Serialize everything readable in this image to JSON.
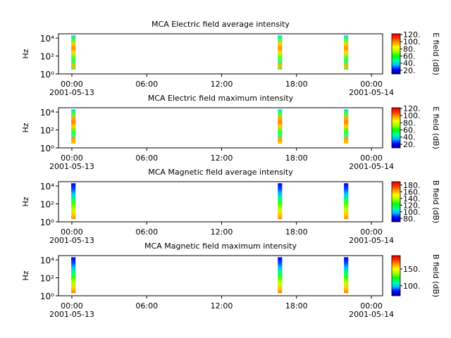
{
  "chart_data": [
    {
      "type": "spectrogram",
      "title": "MCA  Electric field average intensity",
      "ylabel": "Hz",
      "yscale": "log",
      "ylim": [
        1,
        30000
      ],
      "yticks": [
        {
          "value": 1,
          "label": "10⁰"
        },
        {
          "value": 100,
          "label": "10²"
        },
        {
          "value": 10000,
          "label": "10⁴"
        }
      ],
      "xlim": [
        -1.07,
        24.9
      ],
      "xticks": [
        {
          "value": 0,
          "label": "00:00"
        },
        {
          "value": 6,
          "label": "06:00"
        },
        {
          "value": 12,
          "label": "12:00"
        },
        {
          "value": 18,
          "label": "18:00"
        },
        {
          "value": 24,
          "label": "00:00"
        }
      ],
      "dates": [
        {
          "value": 0,
          "label": "2001-05-13"
        },
        {
          "value": 24,
          "label": "2001-05-14"
        }
      ],
      "bursts": [
        {
          "start": -0.05,
          "end": 0.3,
          "fmin": 3,
          "fmax": 20000
        },
        {
          "start": 16.5,
          "end": 16.85,
          "fmin": 3,
          "fmax": 20000
        },
        {
          "start": 21.8,
          "end": 22.15,
          "fmin": 3,
          "fmax": 20000
        }
      ],
      "burst_colors": [
        "#00e0ff",
        "#40ff40",
        "#ffd000",
        "#ff9000",
        "#ffe000",
        "#60ff20",
        "#20ff80",
        "#ffb000",
        "#50ff30"
      ],
      "colorbar_label": "E field (dB)",
      "clim": [
        10,
        122
      ],
      "cticks": [
        {
          "value": 20,
          "label": "20."
        },
        {
          "value": 40,
          "label": "40."
        },
        {
          "value": 60,
          "label": "60."
        },
        {
          "value": 80,
          "label": "80."
        },
        {
          "value": 100,
          "label": "100."
        },
        {
          "value": 120,
          "label": "120."
        }
      ],
      "colormap": [
        "#0000a0",
        "#0000ff",
        "#00c0ff",
        "#00ffa0",
        "#00ff00",
        "#a0ff00",
        "#ffff00",
        "#ffa000",
        "#ff3000",
        "#e00000"
      ]
    },
    {
      "type": "spectrogram",
      "title": "MCA  Electric field maximum intensity",
      "ylabel": "Hz",
      "yscale": "log",
      "ylim": [
        1,
        30000
      ],
      "yticks": [
        {
          "value": 1,
          "label": "10⁰"
        },
        {
          "value": 100,
          "label": "10²"
        },
        {
          "value": 10000,
          "label": "10⁴"
        }
      ],
      "xlim": [
        -1.07,
        24.9
      ],
      "xticks": [
        {
          "value": 0,
          "label": "00:00"
        },
        {
          "value": 6,
          "label": "06:00"
        },
        {
          "value": 12,
          "label": "12:00"
        },
        {
          "value": 18,
          "label": "18:00"
        },
        {
          "value": 24,
          "label": "00:00"
        }
      ],
      "dates": [
        {
          "value": 0,
          "label": "2001-05-13"
        },
        {
          "value": 24,
          "label": "2001-05-14"
        }
      ],
      "bursts": [
        {
          "start": -0.05,
          "end": 0.3,
          "fmin": 3,
          "fmax": 20000
        },
        {
          "start": 16.5,
          "end": 16.85,
          "fmin": 3,
          "fmax": 20000
        },
        {
          "start": 21.8,
          "end": 22.15,
          "fmin": 3,
          "fmax": 20000
        }
      ],
      "burst_colors": [
        "#00e0ff",
        "#40ff40",
        "#ffb000",
        "#ff8000",
        "#ffd000",
        "#40ff20",
        "#20ff80",
        "#ffa000",
        "#ffd000"
      ],
      "colorbar_label": "E field (dB)",
      "clim": [
        10,
        122
      ],
      "cticks": [
        {
          "value": 20,
          "label": "20."
        },
        {
          "value": 40,
          "label": "40."
        },
        {
          "value": 60,
          "label": "60."
        },
        {
          "value": 80,
          "label": "80."
        },
        {
          "value": 100,
          "label": "100."
        },
        {
          "value": 120,
          "label": "120."
        }
      ],
      "colormap": [
        "#0000a0",
        "#0000ff",
        "#00c0ff",
        "#00ffa0",
        "#00ff00",
        "#a0ff00",
        "#ffff00",
        "#ffa000",
        "#ff3000",
        "#e00000"
      ]
    },
    {
      "type": "spectrogram",
      "title": "MCA  Magnetic field average intensity",
      "ylabel": "Hz",
      "yscale": "log",
      "ylim": [
        1,
        30000
      ],
      "yticks": [
        {
          "value": 1,
          "label": "10⁰"
        },
        {
          "value": 100,
          "label": "10²"
        },
        {
          "value": 10000,
          "label": "10⁴"
        }
      ],
      "xlim": [
        -1.07,
        24.9
      ],
      "xticks": [
        {
          "value": 0,
          "label": "00:00"
        },
        {
          "value": 6,
          "label": "06:00"
        },
        {
          "value": 12,
          "label": "12:00"
        },
        {
          "value": 18,
          "label": "18:00"
        },
        {
          "value": 24,
          "label": "00:00"
        }
      ],
      "dates": [
        {
          "value": 0,
          "label": "2001-05-13"
        },
        {
          "value": 24,
          "label": "2001-05-14"
        }
      ],
      "bursts": [
        {
          "start": -0.05,
          "end": 0.3,
          "fmin": 2,
          "fmax": 20000
        },
        {
          "start": 16.5,
          "end": 16.85,
          "fmin": 2,
          "fmax": 20000
        },
        {
          "start": 21.8,
          "end": 22.15,
          "fmin": 2,
          "fmax": 20000
        }
      ],
      "burst_colors": [
        "#0000ff",
        "#0040ff",
        "#00c0ff",
        "#00ff80",
        "#40ff00",
        "#c0ff00",
        "#ffd000",
        "#ff9000"
      ],
      "colorbar_label": "B field (dB)",
      "clim": [
        70,
        190
      ],
      "cticks": [
        {
          "value": 80,
          "label": "80."
        },
        {
          "value": 100,
          "label": "100."
        },
        {
          "value": 120,
          "label": "120."
        },
        {
          "value": 140,
          "label": "140."
        },
        {
          "value": 160,
          "label": "160."
        },
        {
          "value": 180,
          "label": "180."
        }
      ],
      "colormap": [
        "#0000a0",
        "#0000ff",
        "#00c0ff",
        "#00ffa0",
        "#00ff00",
        "#a0ff00",
        "#ffff00",
        "#ffa000",
        "#ff3000",
        "#e00000"
      ]
    },
    {
      "type": "spectrogram",
      "title": "MCA  Magnetic field maximum intensity",
      "ylabel": "Hz",
      "yscale": "log",
      "ylim": [
        1,
        30000
      ],
      "yticks": [
        {
          "value": 1,
          "label": "10⁰"
        },
        {
          "value": 100,
          "label": "10²"
        },
        {
          "value": 10000,
          "label": "10⁴"
        }
      ],
      "xlim": [
        -1.07,
        24.9
      ],
      "xticks": [
        {
          "value": 0,
          "label": "00:00"
        },
        {
          "value": 6,
          "label": "06:00"
        },
        {
          "value": 12,
          "label": "12:00"
        },
        {
          "value": 18,
          "label": "18:00"
        },
        {
          "value": 24,
          "label": "00:00"
        }
      ],
      "dates": [
        {
          "value": 0,
          "label": "2001-05-13"
        },
        {
          "value": 24,
          "label": "2001-05-14"
        }
      ],
      "bursts": [
        {
          "start": -0.05,
          "end": 0.3,
          "fmin": 2,
          "fmax": 20000
        },
        {
          "start": 16.5,
          "end": 16.85,
          "fmin": 2,
          "fmax": 20000
        },
        {
          "start": 21.8,
          "end": 22.15,
          "fmin": 2,
          "fmax": 20000
        }
      ],
      "burst_colors": [
        "#0000ff",
        "#0040ff",
        "#00c0ff",
        "#00ff80",
        "#40ff00",
        "#c0ff00",
        "#ffd000",
        "#ff8000"
      ],
      "colorbar_label": "B field (dB)",
      "clim": [
        70,
        190
      ],
      "cticks": [
        {
          "value": 100,
          "label": "100."
        },
        {
          "value": 150,
          "label": "150."
        }
      ],
      "colormap": [
        "#0000a0",
        "#0000ff",
        "#00c0ff",
        "#00ffa0",
        "#00ff00",
        "#a0ff00",
        "#ffff00",
        "#ffa000",
        "#ff3000",
        "#e00000"
      ]
    }
  ]
}
